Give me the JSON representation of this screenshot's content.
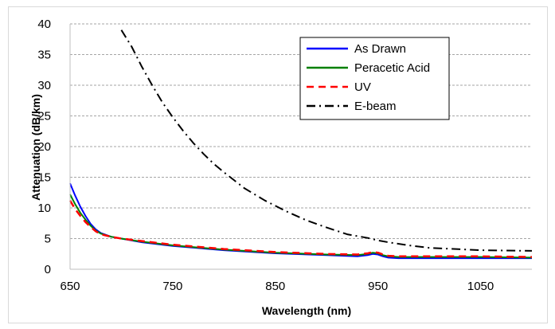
{
  "chart_data": {
    "type": "line",
    "title": "",
    "xlabel": "Wavelength (nm)",
    "ylabel": "Attenuation (dB/km)",
    "xlim": [
      650,
      1100
    ],
    "ylim": [
      0,
      40
    ],
    "xticks": [
      "650",
      "750",
      "850",
      "950",
      "1050"
    ],
    "yticks": [
      "0",
      "5",
      "10",
      "15",
      "20",
      "25",
      "30",
      "35",
      "40"
    ],
    "grid": "horizontal dashed",
    "legend_position": "top-right",
    "series": [
      {
        "name": "As Drawn",
        "color": "#0000ff",
        "dash": "solid",
        "x": [
          650,
          655,
          660,
          665,
          670,
          675,
          680,
          690,
          700,
          720,
          750,
          800,
          850,
          900,
          930,
          940,
          945,
          950,
          955,
          960,
          970,
          1000,
          1050,
          1100
        ],
        "y": [
          14.0,
          12.0,
          10.2,
          8.7,
          7.4,
          6.5,
          5.9,
          5.3,
          5.0,
          4.4,
          3.8,
          3.1,
          2.6,
          2.3,
          2.1,
          2.3,
          2.5,
          2.4,
          2.1,
          1.9,
          1.8,
          1.8,
          1.8,
          1.8
        ]
      },
      {
        "name": "Peracetic Acid",
        "color": "#008000",
        "dash": "solid",
        "x": [
          650,
          655,
          660,
          665,
          670,
          675,
          680,
          690,
          700,
          720,
          750,
          800,
          850,
          900,
          930,
          940,
          945,
          950,
          955,
          960,
          970,
          1000,
          1050,
          1100
        ],
        "y": [
          12.2,
          10.6,
          9.2,
          8.1,
          7.1,
          6.3,
          5.8,
          5.3,
          5.0,
          4.5,
          3.9,
          3.2,
          2.7,
          2.4,
          2.3,
          2.5,
          2.7,
          2.6,
          2.3,
          2.1,
          2.0,
          2.0,
          2.0,
          1.9
        ]
      },
      {
        "name": "UV",
        "color": "#ff0000",
        "dash": "dashed",
        "x": [
          650,
          655,
          660,
          665,
          670,
          675,
          680,
          690,
          700,
          720,
          750,
          800,
          850,
          900,
          930,
          940,
          945,
          950,
          955,
          960,
          970,
          1000,
          1050,
          1100
        ],
        "y": [
          11.2,
          9.8,
          8.7,
          7.7,
          6.9,
          6.2,
          5.7,
          5.3,
          5.0,
          4.6,
          4.0,
          3.3,
          2.8,
          2.5,
          2.4,
          2.6,
          2.8,
          2.7,
          2.4,
          2.2,
          2.1,
          2.1,
          2.1,
          2.0
        ]
      },
      {
        "name": "E-beam",
        "color": "#000000",
        "dash": "dash-dot",
        "x": [
          700,
          710,
          720,
          730,
          740,
          750,
          760,
          770,
          780,
          790,
          800,
          820,
          840,
          860,
          880,
          900,
          920,
          940,
          950,
          960,
          980,
          1000,
          1050,
          1100
        ],
        "y": [
          39.0,
          36.3,
          33.0,
          30.0,
          27.2,
          24.8,
          22.6,
          20.6,
          18.8,
          17.2,
          15.8,
          13.2,
          11.2,
          9.5,
          8.0,
          6.8,
          5.7,
          5.1,
          4.7,
          4.4,
          3.9,
          3.5,
          3.1,
          3.0
        ]
      }
    ]
  }
}
